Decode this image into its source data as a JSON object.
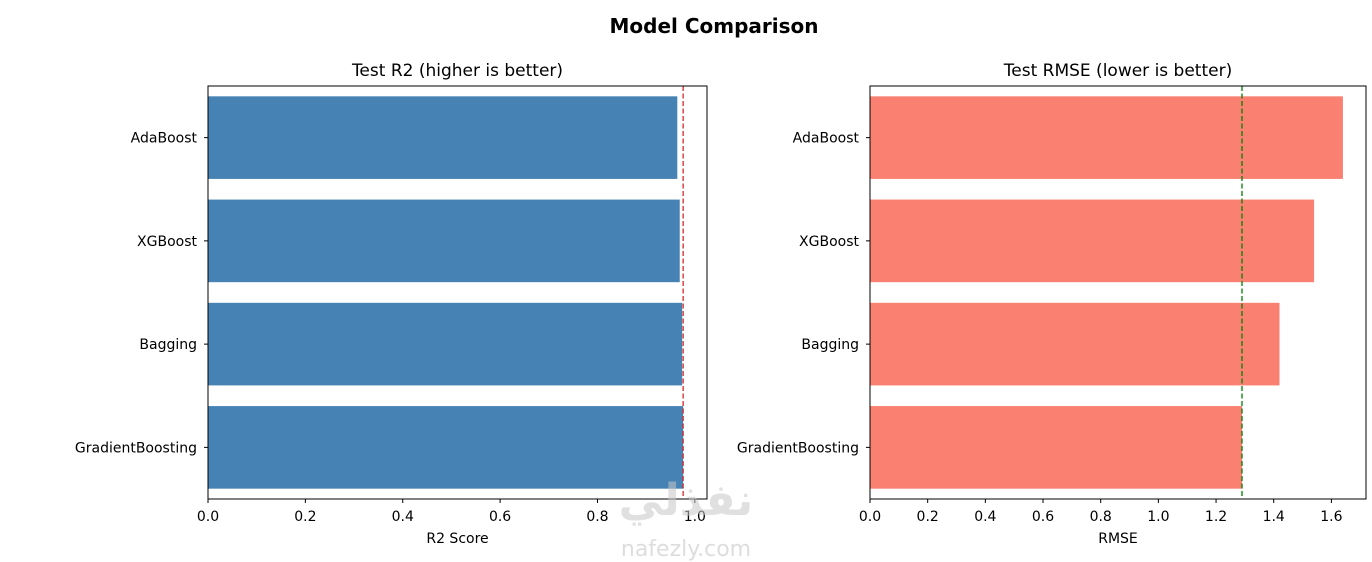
{
  "figure": {
    "suptitle": "Model Comparison"
  },
  "watermark": {
    "arabic": "نفذلي",
    "latin": "nafezly.com"
  },
  "chart_data": [
    {
      "type": "bar",
      "orientation": "horizontal",
      "title": "Test R2 (higher is better)",
      "xlabel": "R2 Score",
      "ylabel": "",
      "categories": [
        "AdaBoost",
        "XGBoost",
        "Bagging",
        "GradientBoosting"
      ],
      "values": [
        0.964,
        0.969,
        0.974,
        0.976
      ],
      "xlim": [
        0.0,
        1.025
      ],
      "xticks": [
        "0.0",
        "0.2",
        "0.4",
        "0.6",
        "0.8",
        "1.0"
      ],
      "reference_line": {
        "value": 0.976,
        "style": "dashed",
        "color": "#d62728"
      },
      "bar_color": "#4682b4",
      "grid": false
    },
    {
      "type": "bar",
      "orientation": "horizontal",
      "title": "Test RMSE (lower is better)",
      "xlabel": "RMSE",
      "ylabel": "",
      "categories": [
        "AdaBoost",
        "XGBoost",
        "Bagging",
        "GradientBoosting"
      ],
      "values": [
        1.64,
        1.54,
        1.42,
        1.29
      ],
      "xlim": [
        0.0,
        1.72
      ],
      "xticks": [
        "0.0",
        "0.2",
        "0.4",
        "0.6",
        "0.8",
        "1.0",
        "1.2",
        "1.4",
        "1.6"
      ],
      "reference_line": {
        "value": 1.29,
        "style": "dashed",
        "color": "#008000"
      },
      "bar_color": "#fa8072",
      "grid": false
    }
  ]
}
